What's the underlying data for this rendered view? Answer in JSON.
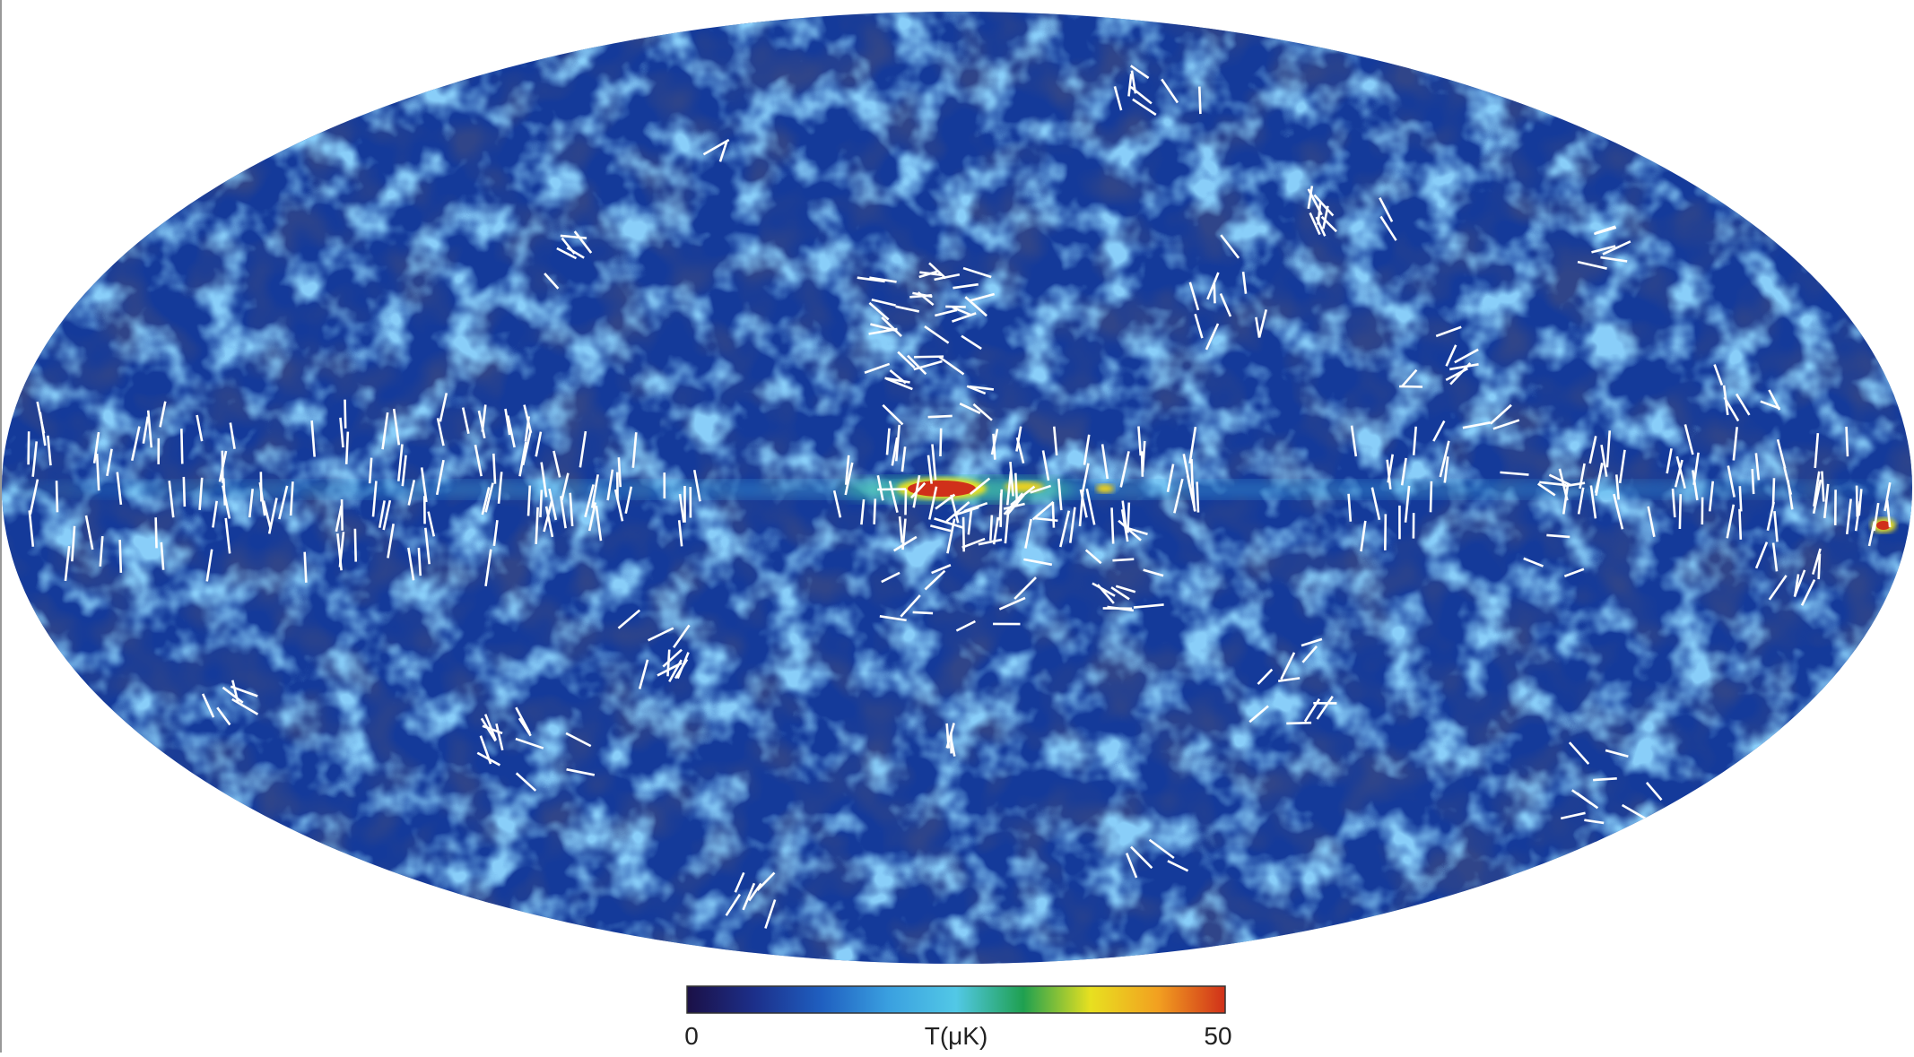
{
  "colorbar": {
    "label": "T(μK)",
    "min": 0,
    "max": 50,
    "ticks": [
      0,
      50
    ],
    "colors": [
      "#1b1046",
      "#1c2f8a",
      "#1f5fc0",
      "#3aa0e0",
      "#52c8e6",
      "#1fa050",
      "#e8e020",
      "#f2a020",
      "#d0301a"
    ]
  }
}
